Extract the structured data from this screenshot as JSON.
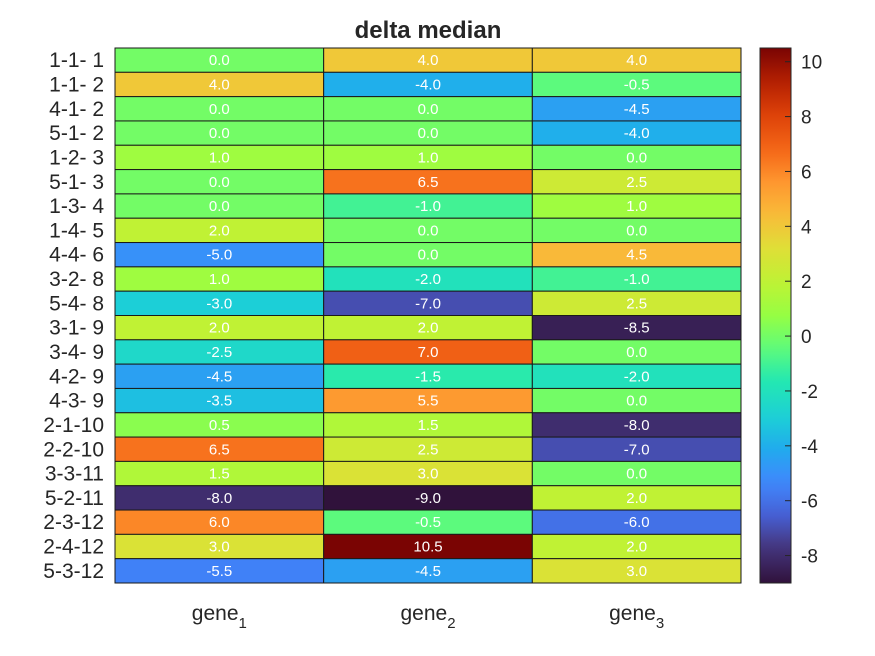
{
  "chart_data": {
    "type": "heatmap",
    "title": "delta median",
    "row_labels": [
      "1-1- 1",
      "1-1- 2",
      "4-1- 2",
      "5-1- 2",
      "1-2- 3",
      "5-1- 3",
      "1-3- 4",
      "1-4- 5",
      "4-4- 6",
      "3-2- 8",
      "5-4- 8",
      "3-1- 9",
      "3-4- 9",
      "4-2- 9",
      "4-3- 9",
      "2-1-10",
      "2-2-10",
      "3-3-11",
      "5-2-11",
      "2-3-12",
      "2-4-12",
      "5-3-12"
    ],
    "columns": [
      {
        "base": "gene",
        "sub": "1"
      },
      {
        "base": "gene",
        "sub": "2"
      },
      {
        "base": "gene",
        "sub": "3"
      }
    ],
    "values": [
      [
        0.0,
        4.0,
        4.0
      ],
      [
        4.0,
        -4.0,
        -0.5
      ],
      [
        0.0,
        0.0,
        -4.5
      ],
      [
        0.0,
        0.0,
        -4.0
      ],
      [
        1.0,
        1.0,
        0.0
      ],
      [
        0.0,
        6.5,
        2.5
      ],
      [
        0.0,
        -1.0,
        1.0
      ],
      [
        2.0,
        0.0,
        0.0
      ],
      [
        -5.0,
        0.0,
        4.5
      ],
      [
        1.0,
        -2.0,
        -1.0
      ],
      [
        -3.0,
        -7.0,
        2.5
      ],
      [
        2.0,
        2.0,
        -8.5
      ],
      [
        -2.5,
        7.0,
        0.0
      ],
      [
        -4.5,
        -1.5,
        -2.0
      ],
      [
        -3.5,
        5.5,
        0.0
      ],
      [
        0.5,
        1.5,
        -8.0
      ],
      [
        6.5,
        2.5,
        -7.0
      ],
      [
        1.5,
        3.0,
        0.0
      ],
      [
        -8.0,
        -9.0,
        2.0
      ],
      [
        6.0,
        -0.5,
        -6.0
      ],
      [
        3.0,
        10.5,
        2.0
      ],
      [
        -5.5,
        -4.5,
        3.0
      ]
    ],
    "color_range": [
      -9.0,
      10.5
    ],
    "colormap": "turbo",
    "colorbar": {
      "ticks": [
        10,
        8,
        6,
        4,
        2,
        0,
        -2,
        -4,
        -6,
        -8
      ],
      "tick_labels": [
        "10",
        "8",
        "6",
        "4",
        "2",
        "0",
        "-2",
        "-4",
        "-6",
        "-8"
      ]
    }
  }
}
